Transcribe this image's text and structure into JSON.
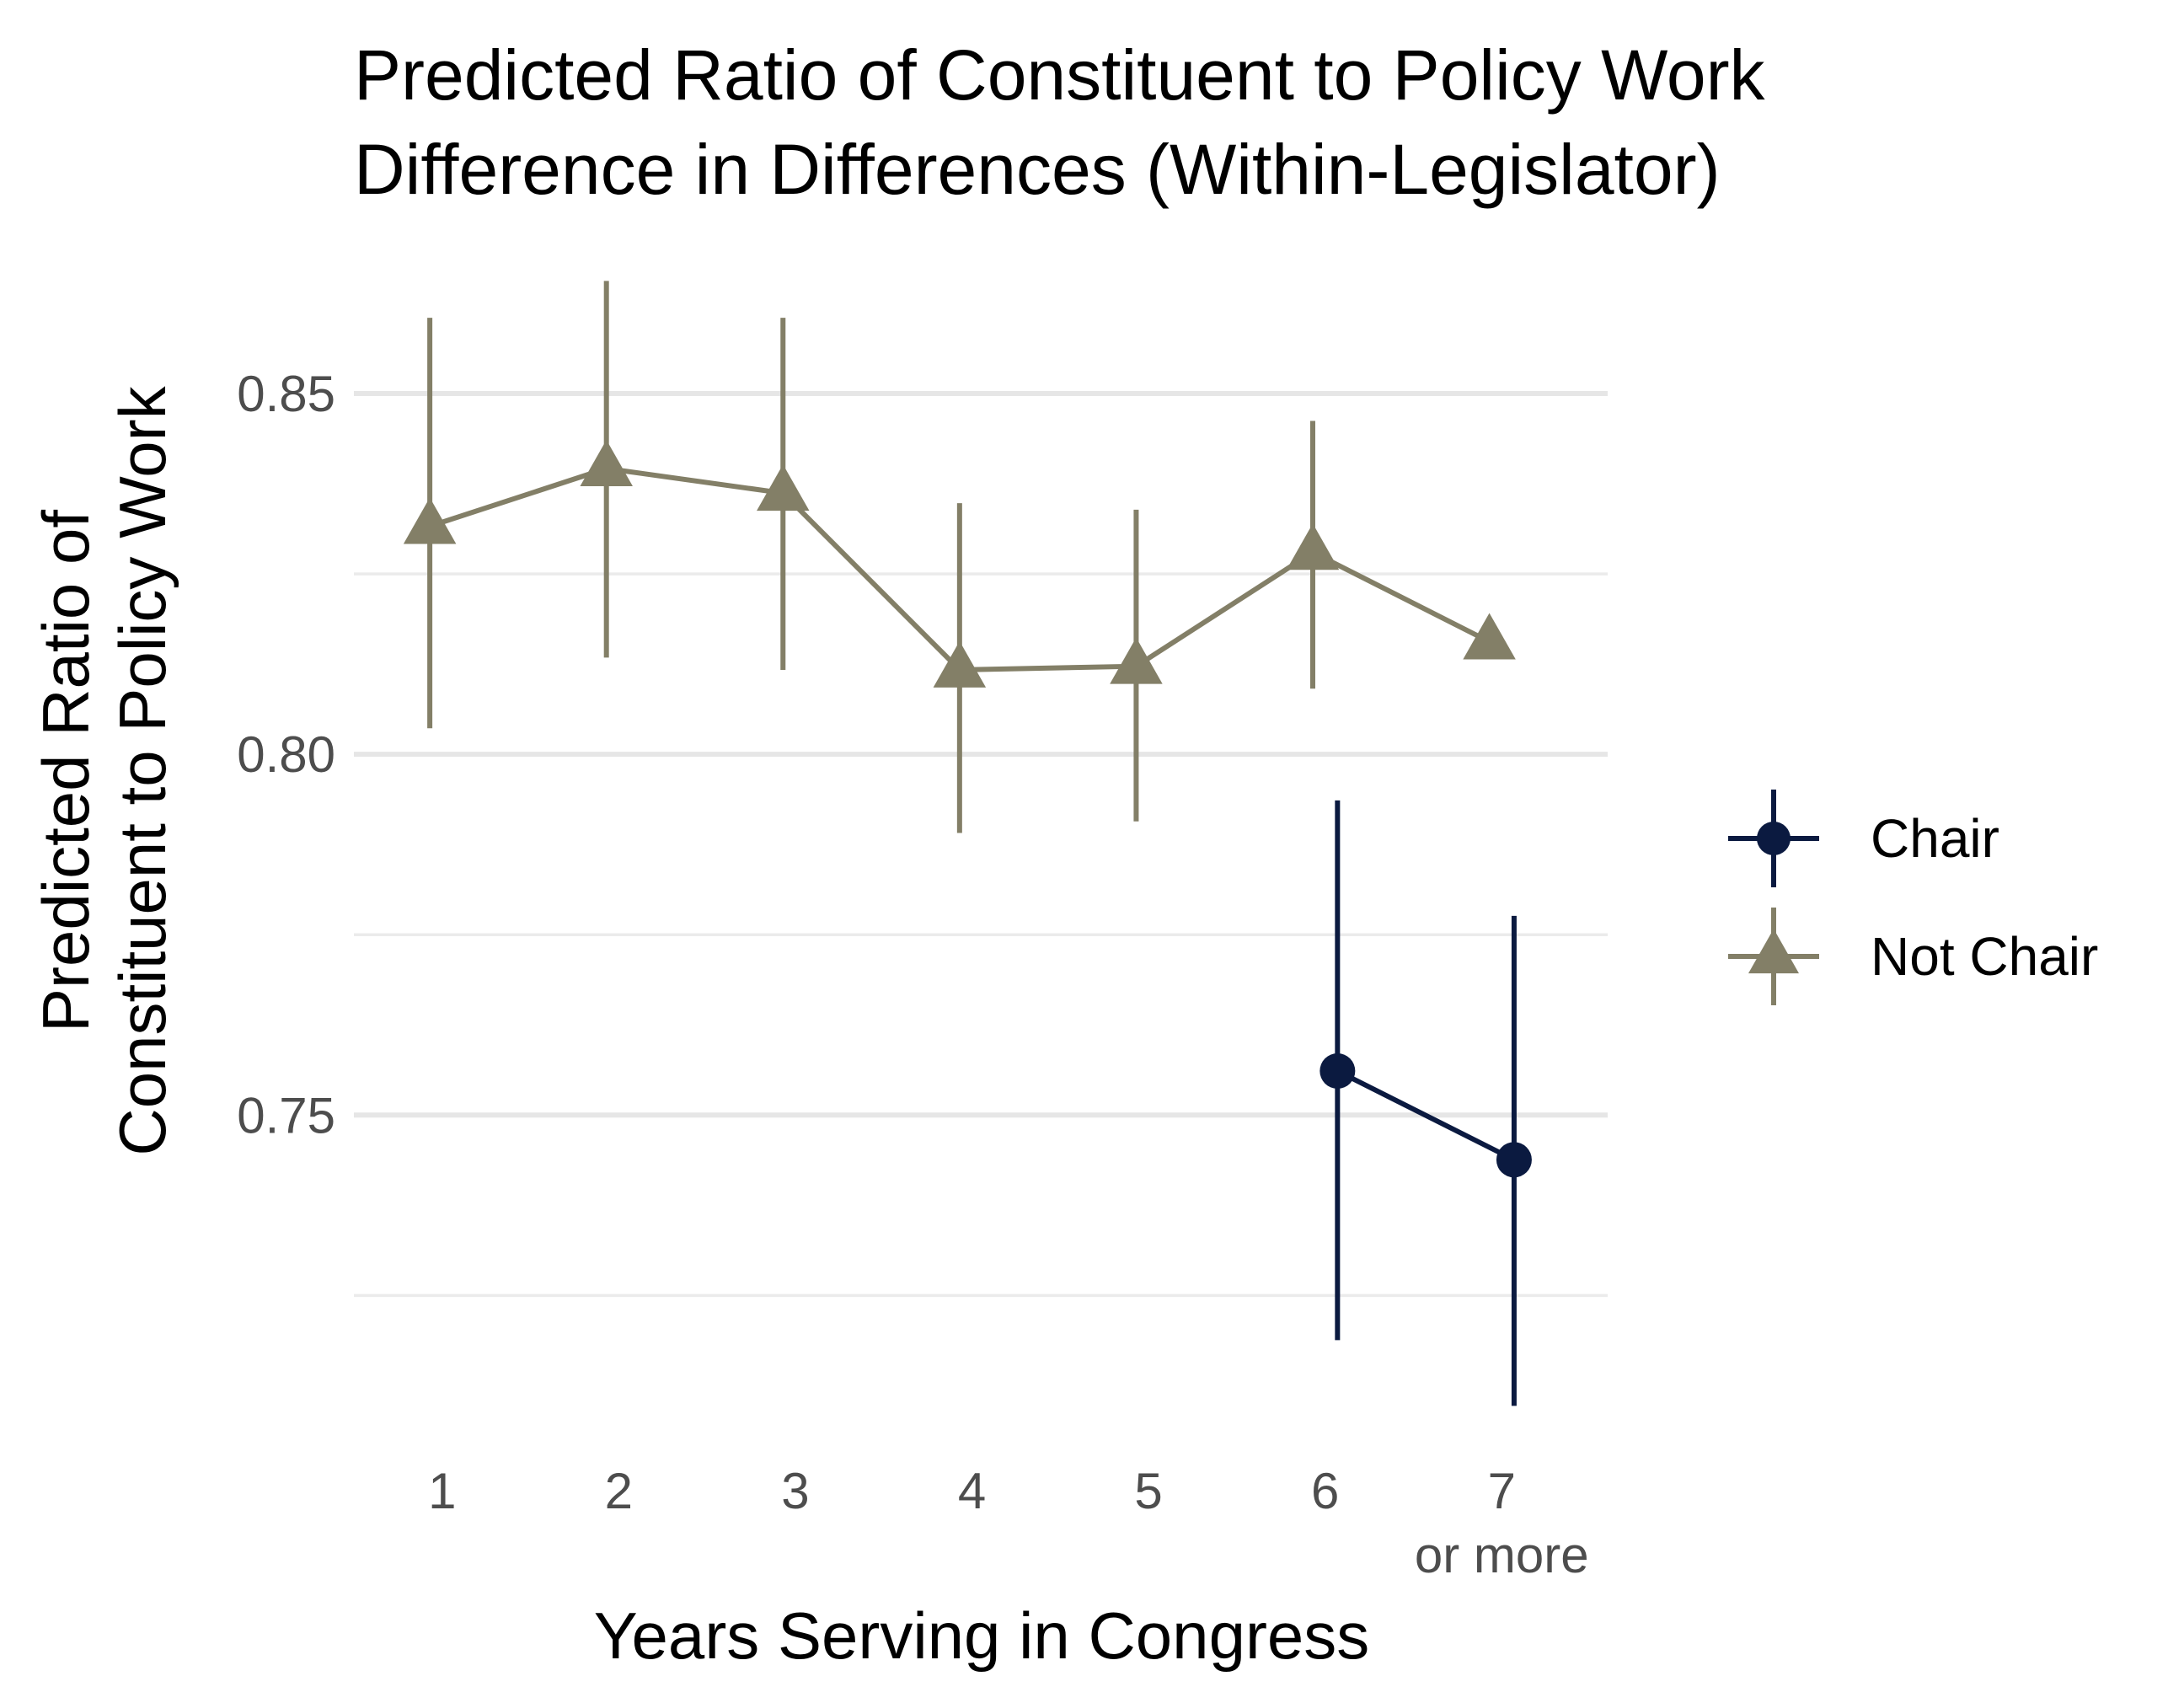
{
  "chart_data": {
    "type": "line",
    "title": [
      "Predicted Ratio of Constituent to Policy Work",
      "Difference in Differences (Within-Legislator)"
    ],
    "xlabel": "Years Serving in Congress",
    "ylabel": [
      "Predicted Ratio of",
      "Constituent to Policy Work"
    ],
    "x_categories": [
      {
        "value": 1,
        "label": "1",
        "sublabel": ""
      },
      {
        "value": 2,
        "label": "2",
        "sublabel": ""
      },
      {
        "value": 3,
        "label": "3",
        "sublabel": ""
      },
      {
        "value": 4,
        "label": "4",
        "sublabel": ""
      },
      {
        "value": 5,
        "label": "5",
        "sublabel": ""
      },
      {
        "value": 6,
        "label": "6",
        "sublabel": ""
      },
      {
        "value": 7,
        "label": "7",
        "sublabel": "or more"
      }
    ],
    "yticks": [
      {
        "value": 0.75,
        "label": "0.75"
      },
      {
        "value": 0.8,
        "label": "0.80"
      },
      {
        "value": 0.85,
        "label": "0.85"
      }
    ],
    "minor_gridlines": [
      0.725,
      0.775,
      0.825
    ],
    "xlim": [
      0.5,
      7.6
    ],
    "ylim": [
      0.706,
      0.866
    ],
    "grid": true,
    "legend_position": "right",
    "series": [
      {
        "name": "Chair",
        "color": "#0b1a40",
        "marker": "circle",
        "points": [
          {
            "x": 6.07,
            "y": 0.7561,
            "lo": 0.7188,
            "hi": 0.7936
          },
          {
            "x": 7.07,
            "y": 0.7438,
            "lo": 0.7097,
            "hi": 0.7776
          }
        ]
      },
      {
        "name": "Not Chair",
        "color": "#837f67",
        "marker": "triangle",
        "points": [
          {
            "x": 0.93,
            "y": 0.8316,
            "lo": 0.8036,
            "hi": 0.8605
          },
          {
            "x": 1.93,
            "y": 0.8396,
            "lo": 0.8134,
            "hi": 0.8656
          },
          {
            "x": 2.93,
            "y": 0.8362,
            "lo": 0.8117,
            "hi": 0.8605
          },
          {
            "x": 3.93,
            "y": 0.8117,
            "lo": 0.7891,
            "hi": 0.8348
          },
          {
            "x": 4.93,
            "y": 0.8122,
            "lo": 0.7907,
            "hi": 0.8339
          },
          {
            "x": 5.93,
            "y": 0.828,
            "lo": 0.8091,
            "hi": 0.8462
          },
          {
            "x": 6.93,
            "y": 0.8156,
            "lo": null,
            "hi": null
          }
        ]
      }
    ]
  }
}
